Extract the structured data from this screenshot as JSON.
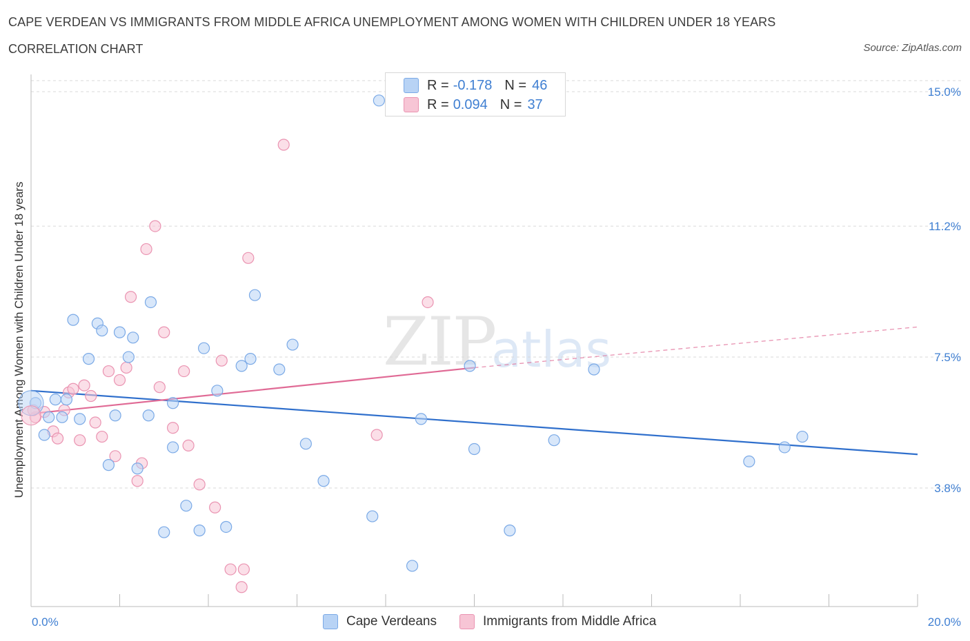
{
  "header": {
    "title": "CAPE VERDEAN VS IMMIGRANTS FROM MIDDLE AFRICA UNEMPLOYMENT AMONG WOMEN WITH CHILDREN UNDER 18 YEARS",
    "subtitle": "CORRELATION CHART",
    "source": "Source: ZipAtlas.com"
  },
  "watermark": {
    "zip": "ZIP",
    "atlas": "atlas"
  },
  "legend_top": {
    "rows": [
      {
        "r_label": "R =",
        "r_value": "-0.178",
        "n_label": "N =",
        "n_value": "46"
      },
      {
        "r_label": "R =",
        "r_value": "0.094",
        "n_label": "N =",
        "n_value": "37"
      }
    ]
  },
  "legend_bottom": {
    "items": [
      "Cape Verdeans",
      "Immigrants from Middle Africa"
    ]
  },
  "colors": {
    "blue_fill": "#b8d3f5",
    "blue_stroke": "#7aa9e6",
    "blue_line": "#2f6fcc",
    "pink_fill": "#f7c5d5",
    "pink_stroke": "#ea93b1",
    "pink_line": "#e06a95",
    "tick_text": "#3f7fd2",
    "grid": "#d9d9d9"
  },
  "chart_data": {
    "type": "scatter",
    "title": "CAPE VERDEAN VS IMMIGRANTS FROM MIDDLE AFRICA UNEMPLOYMENT AMONG WOMEN WITH CHILDREN UNDER 18 YEARS",
    "xlabel": "",
    "ylabel": "Unemployment Among Women with Children Under 18 years",
    "xlim": [
      0,
      20
    ],
    "ylim": [
      0,
      15.5
    ],
    "x_tick_labels": [
      "0.0%",
      "20.0%"
    ],
    "y_ticks": [
      3.8,
      7.5,
      11.2,
      15.0
    ],
    "y_tick_labels": [
      "3.8%",
      "7.5%",
      "11.2%",
      "15.0%"
    ],
    "grid": "horizontal dashed",
    "legend_position": "top-center",
    "series": [
      {
        "name": "Cape Verdeans",
        "r": -0.178,
        "n": 46,
        "trend": {
          "x": [
            0,
            20
          ],
          "y": [
            6.55,
            4.75
          ]
        },
        "points": [
          [
            0.1,
            6.2
          ],
          [
            0.3,
            5.3
          ],
          [
            0.4,
            5.8
          ],
          [
            0.55,
            6.3
          ],
          [
            0.7,
            5.8
          ],
          [
            0.8,
            6.3
          ],
          [
            0.95,
            8.55
          ],
          [
            1.1,
            5.75
          ],
          [
            1.3,
            7.45
          ],
          [
            1.5,
            8.45
          ],
          [
            1.6,
            8.25
          ],
          [
            1.75,
            4.45
          ],
          [
            1.9,
            5.85
          ],
          [
            2.0,
            8.2
          ],
          [
            2.2,
            7.5
          ],
          [
            2.3,
            8.05
          ],
          [
            2.4,
            4.35
          ],
          [
            2.65,
            5.85
          ],
          [
            2.7,
            9.05
          ],
          [
            3.0,
            2.55
          ],
          [
            3.2,
            6.2
          ],
          [
            3.2,
            4.95
          ],
          [
            3.5,
            3.3
          ],
          [
            3.8,
            2.6
          ],
          [
            3.9,
            7.75
          ],
          [
            4.2,
            6.55
          ],
          [
            4.4,
            2.7
          ],
          [
            4.75,
            7.25
          ],
          [
            4.95,
            7.45
          ],
          [
            5.05,
            9.25
          ],
          [
            5.6,
            7.15
          ],
          [
            5.9,
            7.85
          ],
          [
            6.2,
            5.05
          ],
          [
            6.6,
            4.0
          ],
          [
            7.7,
            3.0
          ],
          [
            7.85,
            14.75
          ],
          [
            8.6,
            1.6
          ],
          [
            8.8,
            5.75
          ],
          [
            9.9,
            7.25
          ],
          [
            10.0,
            4.9
          ],
          [
            10.8,
            2.6
          ],
          [
            11.8,
            5.15
          ],
          [
            12.7,
            7.15
          ],
          [
            16.2,
            4.55
          ],
          [
            17.0,
            4.95
          ],
          [
            17.4,
            5.25
          ]
        ]
      },
      {
        "name": "Immigrants from Middle Africa",
        "r": 0.094,
        "n": 37,
        "trend_solid": {
          "x": [
            0,
            10.0
          ],
          "y": [
            5.9,
            7.2
          ]
        },
        "trend_dashed": {
          "x": [
            10.0,
            20
          ],
          "y": [
            7.2,
            8.35
          ]
        },
        "points": [
          [
            0.1,
            5.8
          ],
          [
            0.3,
            5.95
          ],
          [
            0.5,
            5.4
          ],
          [
            0.6,
            5.2
          ],
          [
            0.75,
            6.0
          ],
          [
            0.85,
            6.5
          ],
          [
            0.95,
            6.6
          ],
          [
            1.1,
            5.15
          ],
          [
            1.2,
            6.7
          ],
          [
            1.35,
            6.4
          ],
          [
            1.45,
            5.65
          ],
          [
            1.6,
            5.25
          ],
          [
            1.75,
            7.1
          ],
          [
            1.9,
            4.7
          ],
          [
            2.0,
            6.85
          ],
          [
            2.15,
            7.2
          ],
          [
            2.25,
            9.2
          ],
          [
            2.4,
            4.0
          ],
          [
            2.5,
            4.5
          ],
          [
            2.6,
            10.55
          ],
          [
            2.8,
            11.2
          ],
          [
            2.9,
            6.65
          ],
          [
            3.0,
            8.2
          ],
          [
            3.2,
            5.5
          ],
          [
            3.45,
            7.1
          ],
          [
            3.55,
            5.0
          ],
          [
            3.8,
            3.9
          ],
          [
            4.15,
            3.25
          ],
          [
            4.3,
            7.4
          ],
          [
            4.5,
            1.5
          ],
          [
            4.75,
            1.0
          ],
          [
            4.8,
            1.5
          ],
          [
            4.9,
            10.3
          ],
          [
            5.7,
            13.5
          ],
          [
            7.8,
            5.3
          ],
          [
            8.95,
            9.05
          ],
          [
            0.05,
            6.0
          ]
        ]
      }
    ]
  }
}
